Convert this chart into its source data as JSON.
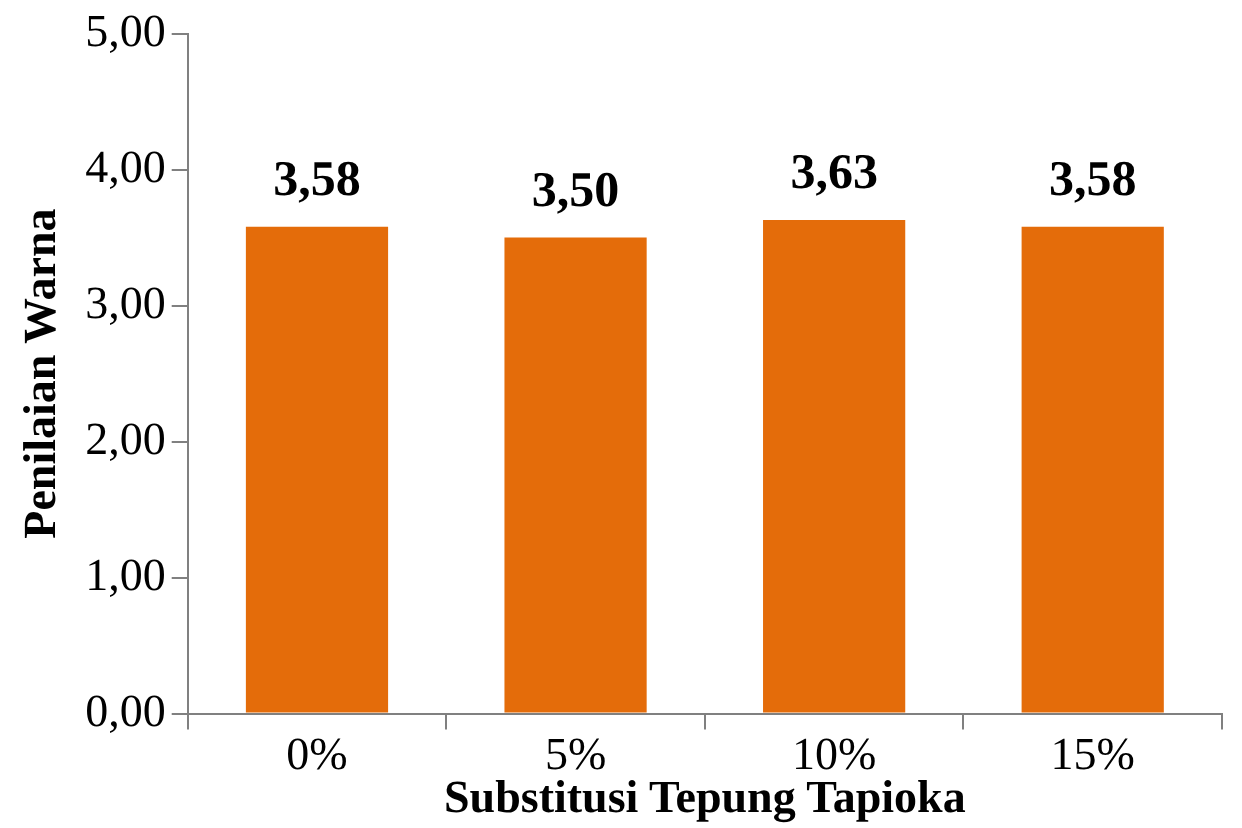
{
  "chart_data": {
    "type": "bar",
    "xlabel": "Substitusi Tepung Tapioka",
    "ylabel": "Penilaian Warna",
    "categories": [
      "0%",
      "5%",
      "10%",
      "15%"
    ],
    "values": [
      3.58,
      3.5,
      3.63,
      3.58
    ],
    "value_labels": [
      "3,58",
      "3,50",
      "3,63",
      "3,58"
    ],
    "color": "#e46c0a",
    "ylim": [
      0,
      5
    ],
    "yticks": [
      {
        "value": 0,
        "label": "0,00"
      },
      {
        "value": 1,
        "label": "1,00"
      },
      {
        "value": 2,
        "label": "2,00"
      },
      {
        "value": 3,
        "label": "3,00"
      },
      {
        "value": 4,
        "label": "4,00"
      },
      {
        "value": 5,
        "label": "5,00"
      }
    ],
    "grid": false,
    "legend": false
  }
}
